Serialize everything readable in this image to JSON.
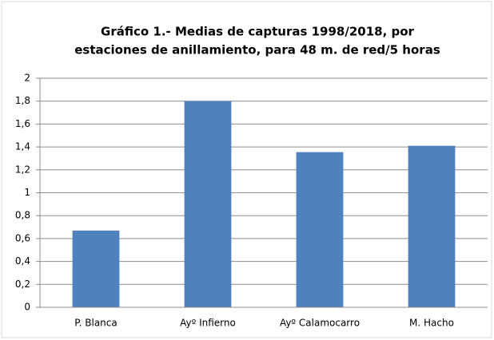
{
  "chart_data": {
    "type": "bar",
    "title": [
      "Gráfico 1.- Medias de capturas 1998/2018, por",
      "estaciones de anillamiento, para 48 m. de red/5 horas"
    ],
    "categories": [
      "P. Blanca",
      "Ayº Infierno",
      "Ayº Calamocarro",
      "M. Hacho"
    ],
    "values": [
      0.67,
      1.8,
      1.355,
      1.41
    ],
    "color": "#4f81bd",
    "ylim": [
      0,
      2
    ],
    "yticks": [
      0,
      {
        "value": 0.2,
        "label": "0,2"
      },
      {
        "value": 0.4,
        "label": "0,4"
      },
      {
        "value": 0.6,
        "label": "0,6"
      },
      {
        "value": 0.8,
        "label": "0,8"
      },
      1,
      {
        "value": 1.2,
        "label": "1,2"
      },
      {
        "value": 1.4,
        "label": "1,4"
      },
      {
        "value": 1.6,
        "label": "1,6"
      },
      {
        "value": 1.8,
        "label": "1,8"
      },
      2
    ],
    "grid": true
  }
}
